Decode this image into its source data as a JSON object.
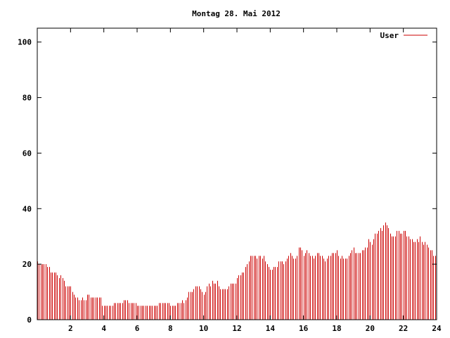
{
  "chart_data": {
    "type": "bar",
    "title": "Montag 28. Mai 2012",
    "xlabel": "",
    "ylabel": "",
    "xlim": [
      0,
      24
    ],
    "ylim": [
      0,
      105
    ],
    "xticks": [
      2,
      4,
      6,
      8,
      10,
      12,
      14,
      16,
      18,
      20,
      22,
      24
    ],
    "xtick_labels": [
      "2",
      "4",
      "6",
      "8",
      "10",
      "12",
      "14",
      "16",
      "18",
      "20",
      "22",
      "24"
    ],
    "yticks": [
      0,
      20,
      40,
      60,
      80,
      100
    ],
    "ytick_labels": [
      "0",
      "20",
      "40",
      "60",
      "80",
      "100"
    ],
    "grid": false,
    "legend_position": "top-right",
    "series": [
      {
        "name": "User",
        "color": "#cc0000",
        "interval_hours": 0.1,
        "values": [
          21,
          20,
          20,
          20,
          20,
          20,
          19,
          19,
          17,
          17,
          17,
          17,
          16,
          15,
          16,
          15,
          14,
          12,
          12,
          12,
          12,
          10,
          9,
          8,
          8,
          7,
          7,
          8,
          7,
          7,
          9,
          9,
          8,
          8,
          8,
          8,
          8,
          8,
          8,
          5,
          5,
          5,
          5,
          5,
          5,
          5,
          6,
          6,
          6,
          6,
          6,
          6,
          7,
          7,
          7,
          6,
          6,
          6,
          6,
          6,
          5,
          5,
          5,
          5,
          5,
          5,
          5,
          5,
          5,
          5,
          5,
          5,
          5,
          6,
          6,
          6,
          6,
          6,
          6,
          6,
          5,
          5,
          5,
          5,
          6,
          6,
          6,
          7,
          6,
          7,
          8,
          10,
          10,
          10,
          11,
          12,
          12,
          12,
          11,
          10,
          9,
          10,
          12,
          13,
          12,
          14,
          13,
          13,
          14,
          12,
          11,
          11,
          11,
          11,
          11,
          12,
          13,
          13,
          13,
          13,
          15,
          16,
          16,
          17,
          17,
          19,
          20,
          21,
          23,
          23,
          23,
          23,
          22,
          23,
          23,
          22,
          23,
          21,
          20,
          19,
          18,
          18,
          19,
          19,
          19,
          21,
          21,
          21,
          20,
          21,
          22,
          23,
          24,
          23,
          22,
          22,
          23,
          26,
          26,
          25,
          23,
          24,
          25,
          24,
          23,
          23,
          22,
          23,
          24,
          24,
          23,
          23,
          22,
          21,
          22,
          23,
          23,
          24,
          24,
          24,
          25,
          23,
          22,
          23,
          22,
          22,
          22,
          23,
          24,
          25,
          26,
          24,
          24,
          24,
          24,
          25,
          25,
          26,
          26,
          29,
          28,
          27,
          29,
          31,
          31,
          32,
          33,
          32,
          34,
          35,
          34,
          33,
          31,
          30,
          30,
          30,
          32,
          32,
          31,
          31,
          32,
          32,
          30,
          30,
          29,
          29,
          28,
          28,
          29,
          28,
          30,
          28,
          27,
          28,
          27,
          26,
          25,
          25,
          23,
          23
        ]
      }
    ]
  }
}
